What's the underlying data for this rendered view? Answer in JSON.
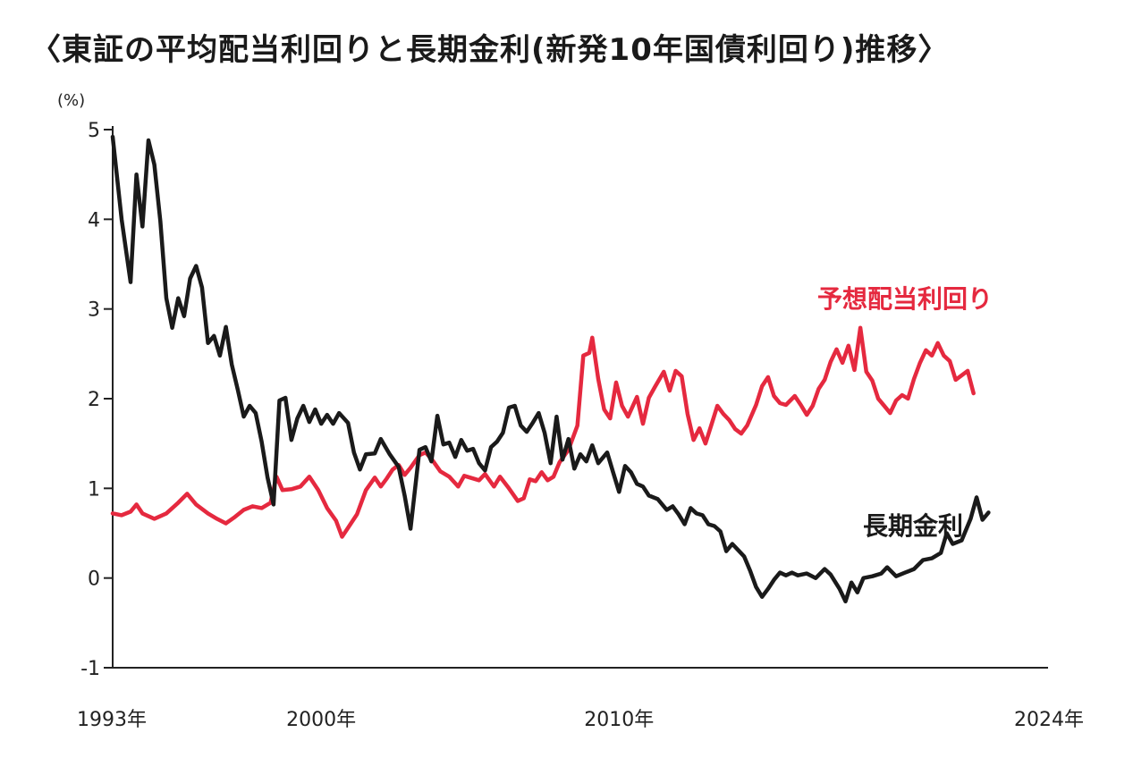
{
  "chart_data": {
    "type": "line",
    "title": "〈東証の平均配当利回りと長期金利(新発10年国債利回り)推移〉",
    "ylabel": "(%)",
    "xlabel": "",
    "ylim": [
      -1,
      5
    ],
    "yticks": [
      -1,
      0,
      1,
      2,
      3,
      4,
      5
    ],
    "xlim": [
      1993.0,
      2024.4
    ],
    "xticks": [
      {
        "value": 1993.0,
        "label": "1993年"
      },
      {
        "value": 2000.0,
        "label": "2000年"
      },
      {
        "value": 2010.0,
        "label": "2010年"
      },
      {
        "value": 2024.0,
        "label": "2024年"
      }
    ],
    "grid": false,
    "legend": "direct labels on lines",
    "series": [
      {
        "name": "予想配当利回り",
        "color": "#e5293f",
        "points": [
          [
            1993.0,
            0.72
          ],
          [
            1993.3,
            0.7
          ],
          [
            1993.6,
            0.74
          ],
          [
            1993.8,
            0.82
          ],
          [
            1994.0,
            0.72
          ],
          [
            1994.4,
            0.66
          ],
          [
            1994.8,
            0.72
          ],
          [
            1995.2,
            0.84
          ],
          [
            1995.5,
            0.94
          ],
          [
            1995.8,
            0.82
          ],
          [
            1996.2,
            0.72
          ],
          [
            1996.5,
            0.66
          ],
          [
            1996.8,
            0.61
          ],
          [
            1997.1,
            0.68
          ],
          [
            1997.4,
            0.76
          ],
          [
            1997.7,
            0.8
          ],
          [
            1998.0,
            0.78
          ],
          [
            1998.3,
            0.84
          ],
          [
            1998.5,
            1.13
          ],
          [
            1998.7,
            0.98
          ],
          [
            1999.0,
            0.99
          ],
          [
            1999.3,
            1.02
          ],
          [
            1999.6,
            1.13
          ],
          [
            1999.9,
            0.98
          ],
          [
            2000.2,
            0.78
          ],
          [
            2000.5,
            0.64
          ],
          [
            2000.7,
            0.46
          ],
          [
            2000.9,
            0.56
          ],
          [
            2001.2,
            0.71
          ],
          [
            2001.5,
            0.98
          ],
          [
            2001.8,
            1.12
          ],
          [
            2002.0,
            1.02
          ],
          [
            2002.2,
            1.11
          ],
          [
            2002.4,
            1.21
          ],
          [
            2002.6,
            1.26
          ],
          [
            2002.8,
            1.15
          ],
          [
            2003.0,
            1.23
          ],
          [
            2003.3,
            1.37
          ],
          [
            2003.5,
            1.4
          ],
          [
            2003.7,
            1.33
          ],
          [
            2004.0,
            1.19
          ],
          [
            2004.3,
            1.13
          ],
          [
            2004.6,
            1.02
          ],
          [
            2004.8,
            1.14
          ],
          [
            2005.0,
            1.12
          ],
          [
            2005.3,
            1.09
          ],
          [
            2005.5,
            1.16
          ],
          [
            2005.8,
            1.02
          ],
          [
            2006.0,
            1.13
          ],
          [
            2006.3,
            1.0
          ],
          [
            2006.6,
            0.86
          ],
          [
            2006.8,
            0.89
          ],
          [
            2007.0,
            1.1
          ],
          [
            2007.2,
            1.08
          ],
          [
            2007.4,
            1.18
          ],
          [
            2007.6,
            1.09
          ],
          [
            2007.8,
            1.13
          ],
          [
            2008.0,
            1.29
          ],
          [
            2008.3,
            1.43
          ],
          [
            2008.6,
            1.7
          ],
          [
            2008.8,
            2.48
          ],
          [
            2009.0,
            2.51
          ],
          [
            2009.1,
            2.68
          ],
          [
            2009.3,
            2.22
          ],
          [
            2009.5,
            1.88
          ],
          [
            2009.7,
            1.78
          ],
          [
            2009.9,
            2.18
          ],
          [
            2010.1,
            1.92
          ],
          [
            2010.3,
            1.8
          ],
          [
            2010.6,
            2.02
          ],
          [
            2010.8,
            1.72
          ],
          [
            2011.0,
            2.01
          ],
          [
            2011.2,
            2.13
          ],
          [
            2011.5,
            2.3
          ],
          [
            2011.7,
            2.09
          ],
          [
            2011.9,
            2.31
          ],
          [
            2012.1,
            2.25
          ],
          [
            2012.3,
            1.83
          ],
          [
            2012.5,
            1.54
          ],
          [
            2012.7,
            1.67
          ],
          [
            2012.9,
            1.5
          ],
          [
            2013.1,
            1.71
          ],
          [
            2013.3,
            1.92
          ],
          [
            2013.5,
            1.83
          ],
          [
            2013.7,
            1.76
          ],
          [
            2013.9,
            1.66
          ],
          [
            2014.1,
            1.61
          ],
          [
            2014.3,
            1.7
          ],
          [
            2014.6,
            1.93
          ],
          [
            2014.8,
            2.14
          ],
          [
            2015.0,
            2.24
          ],
          [
            2015.2,
            2.03
          ],
          [
            2015.4,
            1.95
          ],
          [
            2015.6,
            1.93
          ],
          [
            2015.9,
            2.03
          ],
          [
            2016.1,
            1.93
          ],
          [
            2016.3,
            1.82
          ],
          [
            2016.5,
            1.92
          ],
          [
            2016.7,
            2.11
          ],
          [
            2016.9,
            2.21
          ],
          [
            2017.1,
            2.41
          ],
          [
            2017.3,
            2.55
          ],
          [
            2017.5,
            2.4
          ],
          [
            2017.7,
            2.59
          ],
          [
            2017.9,
            2.32
          ],
          [
            2018.1,
            2.79
          ],
          [
            2018.3,
            2.3
          ],
          [
            2018.5,
            2.2
          ],
          [
            2018.7,
            2.0
          ],
          [
            2018.9,
            1.92
          ],
          [
            2019.1,
            1.84
          ],
          [
            2019.3,
            1.98
          ],
          [
            2019.5,
            2.04
          ],
          [
            2019.7,
            2.0
          ],
          [
            2019.9,
            2.22
          ],
          [
            2020.1,
            2.4
          ],
          [
            2020.3,
            2.54
          ],
          [
            2020.5,
            2.48
          ],
          [
            2020.7,
            2.62
          ],
          [
            2020.9,
            2.48
          ],
          [
            2021.1,
            2.42
          ],
          [
            2021.3,
            2.21
          ],
          [
            2021.5,
            2.26
          ],
          [
            2021.7,
            2.31
          ],
          [
            2021.9,
            2.06
          ]
        ]
      },
      {
        "name": "長期金利",
        "color": "#1a1a1a",
        "points": [
          [
            1993.0,
            4.92
          ],
          [
            1993.3,
            4.0
          ],
          [
            1993.6,
            3.3
          ],
          [
            1993.8,
            4.5
          ],
          [
            1994.0,
            3.92
          ],
          [
            1994.2,
            4.88
          ],
          [
            1994.4,
            4.61
          ],
          [
            1994.6,
            3.98
          ],
          [
            1994.8,
            3.12
          ],
          [
            1995.0,
            2.79
          ],
          [
            1995.2,
            3.12
          ],
          [
            1995.4,
            2.92
          ],
          [
            1995.6,
            3.34
          ],
          [
            1995.8,
            3.48
          ],
          [
            1996.0,
            3.24
          ],
          [
            1996.2,
            2.62
          ],
          [
            1996.4,
            2.7
          ],
          [
            1996.6,
            2.48
          ],
          [
            1996.8,
            2.8
          ],
          [
            1997.0,
            2.38
          ],
          [
            1997.2,
            2.1
          ],
          [
            1997.4,
            1.8
          ],
          [
            1997.6,
            1.92
          ],
          [
            1997.8,
            1.84
          ],
          [
            1998.0,
            1.52
          ],
          [
            1998.2,
            1.12
          ],
          [
            1998.4,
            0.82
          ],
          [
            1998.6,
            1.98
          ],
          [
            1998.8,
            2.01
          ],
          [
            1999.0,
            1.54
          ],
          [
            1999.2,
            1.78
          ],
          [
            1999.4,
            1.92
          ],
          [
            1999.6,
            1.74
          ],
          [
            1999.8,
            1.88
          ],
          [
            2000.0,
            1.72
          ],
          [
            2000.2,
            1.82
          ],
          [
            2000.4,
            1.72
          ],
          [
            2000.6,
            1.84
          ],
          [
            2000.9,
            1.73
          ],
          [
            2001.1,
            1.4
          ],
          [
            2001.3,
            1.21
          ],
          [
            2001.5,
            1.38
          ],
          [
            2001.8,
            1.39
          ],
          [
            2002.0,
            1.55
          ],
          [
            2002.3,
            1.38
          ],
          [
            2002.6,
            1.24
          ],
          [
            2002.8,
            0.92
          ],
          [
            2003.0,
            0.55
          ],
          [
            2003.3,
            1.43
          ],
          [
            2003.5,
            1.46
          ],
          [
            2003.7,
            1.3
          ],
          [
            2003.9,
            1.81
          ],
          [
            2004.1,
            1.49
          ],
          [
            2004.3,
            1.51
          ],
          [
            2004.5,
            1.35
          ],
          [
            2004.7,
            1.54
          ],
          [
            2004.9,
            1.42
          ],
          [
            2005.1,
            1.44
          ],
          [
            2005.3,
            1.28
          ],
          [
            2005.5,
            1.2
          ],
          [
            2005.7,
            1.46
          ],
          [
            2005.9,
            1.52
          ],
          [
            2006.1,
            1.62
          ],
          [
            2006.3,
            1.9
          ],
          [
            2006.5,
            1.92
          ],
          [
            2006.7,
            1.7
          ],
          [
            2006.9,
            1.63
          ],
          [
            2007.1,
            1.73
          ],
          [
            2007.3,
            1.84
          ],
          [
            2007.5,
            1.62
          ],
          [
            2007.7,
            1.28
          ],
          [
            2007.9,
            1.8
          ],
          [
            2008.1,
            1.32
          ],
          [
            2008.3,
            1.55
          ],
          [
            2008.5,
            1.22
          ],
          [
            2008.7,
            1.38
          ],
          [
            2008.9,
            1.3
          ],
          [
            2009.1,
            1.48
          ],
          [
            2009.3,
            1.28
          ],
          [
            2009.6,
            1.4
          ],
          [
            2009.8,
            1.18
          ],
          [
            2010.0,
            0.96
          ],
          [
            2010.2,
            1.25
          ],
          [
            2010.4,
            1.18
          ],
          [
            2010.6,
            1.05
          ],
          [
            2010.8,
            1.02
          ],
          [
            2011.0,
            0.92
          ],
          [
            2011.3,
            0.88
          ],
          [
            2011.6,
            0.76
          ],
          [
            2011.8,
            0.8
          ],
          [
            2012.0,
            0.71
          ],
          [
            2012.2,
            0.6
          ],
          [
            2012.4,
            0.78
          ],
          [
            2012.6,
            0.72
          ],
          [
            2012.8,
            0.7
          ],
          [
            2013.0,
            0.6
          ],
          [
            2013.2,
            0.58
          ],
          [
            2013.4,
            0.52
          ],
          [
            2013.6,
            0.3
          ],
          [
            2013.8,
            0.38
          ],
          [
            2014.0,
            0.31
          ],
          [
            2014.2,
            0.24
          ],
          [
            2014.4,
            0.08
          ],
          [
            2014.6,
            -0.1
          ],
          [
            2014.8,
            -0.21
          ],
          [
            2015.0,
            -0.12
          ],
          [
            2015.2,
            -0.02
          ],
          [
            2015.4,
            0.06
          ],
          [
            2015.6,
            0.03
          ],
          [
            2015.8,
            0.06
          ],
          [
            2016.0,
            0.03
          ],
          [
            2016.3,
            0.05
          ],
          [
            2016.6,
            0.0
          ],
          [
            2016.9,
            0.1
          ],
          [
            2017.1,
            0.04
          ],
          [
            2017.4,
            -0.12
          ],
          [
            2017.6,
            -0.26
          ],
          [
            2017.8,
            -0.05
          ],
          [
            2018.0,
            -0.16
          ],
          [
            2018.2,
            0.0
          ],
          [
            2018.5,
            0.02
          ],
          [
            2018.8,
            0.05
          ],
          [
            2019.0,
            0.12
          ],
          [
            2019.3,
            0.02
          ],
          [
            2019.6,
            0.06
          ],
          [
            2019.9,
            0.1
          ],
          [
            2020.2,
            0.2
          ],
          [
            2020.5,
            0.22
          ],
          [
            2020.8,
            0.28
          ],
          [
            2021.0,
            0.5
          ],
          [
            2021.2,
            0.38
          ],
          [
            2021.5,
            0.42
          ],
          [
            2021.8,
            0.66
          ],
          [
            2022.0,
            0.9
          ],
          [
            2022.2,
            0.65
          ],
          [
            2022.4,
            0.73
          ]
        ]
      }
    ]
  }
}
